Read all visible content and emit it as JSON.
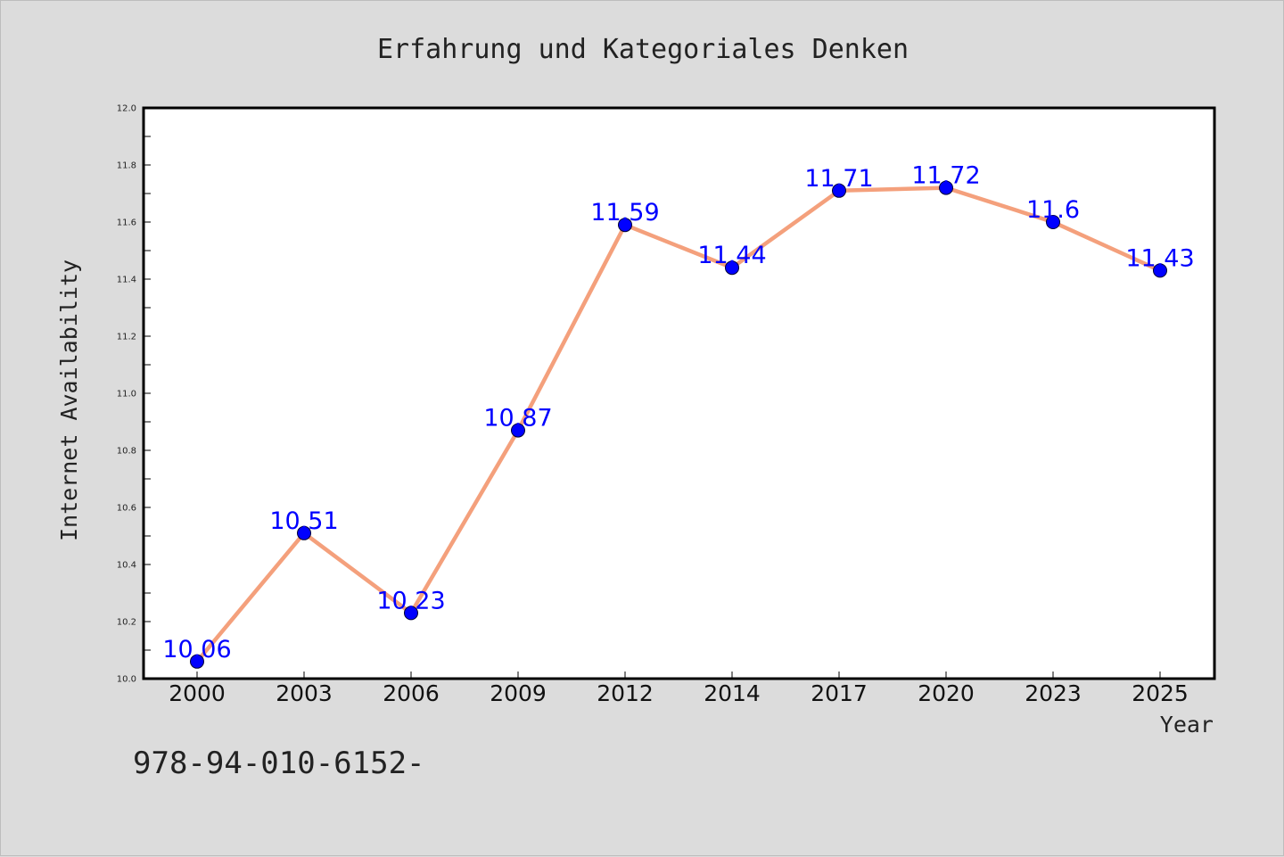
{
  "chart_data": {
    "type": "line",
    "title": "Erfahrung und Kategoriales Denken",
    "xlabel": "Year",
    "ylabel": "Internet Availability",
    "categories": [
      "2000",
      "2003",
      "2006",
      "2009",
      "2012",
      "2014",
      "2017",
      "2020",
      "2023",
      "2025"
    ],
    "series": [
      {
        "values": [
          10.06,
          10.51,
          10.23,
          10.87,
          11.59,
          11.44,
          11.71,
          11.72,
          11.6,
          11.43
        ],
        "labels": [
          "10.06",
          "10.51",
          "10.23",
          "10.87",
          "11.59",
          "11.44",
          "11.71",
          "11.72",
          "11.6",
          "11.43"
        ],
        "line_color": "#f4a07c",
        "marker_color": "#0000ff"
      }
    ],
    "ylim": [
      10.0,
      12.0
    ],
    "yticks": [
      "10.0",
      "10.2",
      "10.4",
      "10.6",
      "10.8",
      "11.0",
      "11.2",
      "11.4",
      "11.6",
      "11.8",
      "12.0"
    ],
    "grid": false,
    "plot_background": "#ffffff",
    "page_background": "#dcdcdc"
  },
  "caption": "978-94-010-6152-"
}
